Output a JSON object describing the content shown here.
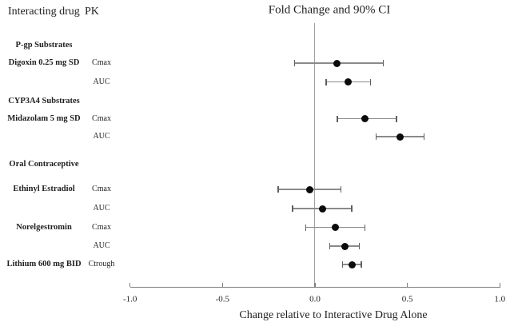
{
  "figure": {
    "columns": {
      "drug_header": "Interacting drug",
      "pk_header": "PK"
    },
    "title": "Fold Change and 90% CI",
    "axis": {
      "label": "Change relative to Interactive Drug Alone",
      "tick_labels": [
        "-1.0",
        "-0.5",
        "0.0",
        "0.5",
        "1.0"
      ]
    }
  },
  "colors": {
    "marker": "#000000",
    "ci_line": "#8a8a8a",
    "axis_line": "#7d7d7d",
    "reference_line": "#a0a0a0",
    "text": "#1f1f1f"
  },
  "chart_data": {
    "type": "forest",
    "title": "Fold Change and 90% CI",
    "xlabel": "Change relative to Interactive Drug Alone",
    "xlim": [
      -1.0,
      1.0
    ],
    "x_ticks": [
      -1.0,
      -0.5,
      0.0,
      0.5,
      1.0
    ],
    "reference_line": 0.0,
    "ci_level": "90%",
    "legend": "none",
    "grid": false,
    "rows": [
      {
        "type": "section",
        "label": "P-gp Substrates"
      },
      {
        "type": "data",
        "drug": "Digoxin 0.25 mg SD",
        "pk": "Cmax",
        "estimate": 0.12,
        "ci_low": -0.11,
        "ci_high": 0.37
      },
      {
        "type": "data",
        "drug": "",
        "pk": "AUC",
        "estimate": 0.18,
        "ci_low": 0.06,
        "ci_high": 0.3
      },
      {
        "type": "section",
        "label": "CYP3A4 Substrates"
      },
      {
        "type": "data",
        "drug": "Midazolam 5 mg SD",
        "pk": "Cmax",
        "estimate": 0.27,
        "ci_low": 0.12,
        "ci_high": 0.44
      },
      {
        "type": "data",
        "drug": "",
        "pk": "AUC",
        "estimate": 0.46,
        "ci_low": 0.33,
        "ci_high": 0.59
      },
      {
        "type": "section",
        "label": "Oral Contraceptive"
      },
      {
        "type": "data",
        "drug": "Ethinyl Estradiol",
        "pk": "Cmax",
        "estimate": -0.03,
        "ci_low": -0.2,
        "ci_high": 0.14
      },
      {
        "type": "data",
        "drug": "",
        "pk": "AUC",
        "estimate": 0.04,
        "ci_low": -0.12,
        "ci_high": 0.2
      },
      {
        "type": "data",
        "drug": "Norelgestromin",
        "pk": "Cmax",
        "estimate": 0.11,
        "ci_low": -0.05,
        "ci_high": 0.27
      },
      {
        "type": "data",
        "drug": "",
        "pk": "AUC",
        "estimate": 0.16,
        "ci_low": 0.08,
        "ci_high": 0.24
      },
      {
        "type": "data",
        "drug": "Lithium 600 mg BID",
        "pk": "Ctrough",
        "estimate": 0.2,
        "ci_low": 0.15,
        "ci_high": 0.25
      }
    ]
  }
}
